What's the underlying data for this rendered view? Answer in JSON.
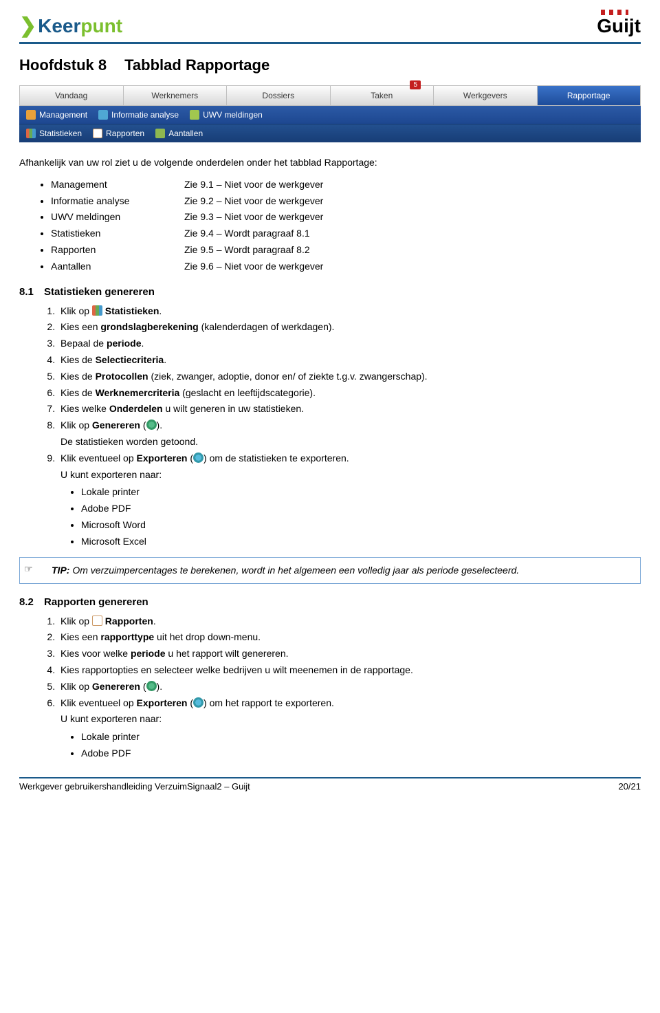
{
  "header": {
    "logo_left_part1": "Keer",
    "logo_left_part2": "punt",
    "logo_right": "Guijt"
  },
  "title": {
    "chapter": "Hoofdstuk 8",
    "name": "Tabblad Rapportage"
  },
  "tabs": [
    "Vandaag",
    "Werknemers",
    "Dossiers",
    "Taken",
    "Werkgevers",
    "Rapportage"
  ],
  "tabs_badge": "5",
  "subbar1": [
    "Management",
    "Informatie analyse",
    "UWV meldingen"
  ],
  "subbar2": [
    "Statistieken",
    "Rapporten",
    "Aantallen"
  ],
  "intro": "Afhankelijk van uw rol ziet u de volgende onderdelen onder het tabblad Rapportage:",
  "mapping": {
    "left": [
      "Management",
      "Informatie analyse",
      "UWV meldingen",
      "Statistieken",
      "Rapporten",
      "Aantallen"
    ],
    "right": [
      "Zie 9.1 – Niet voor de werkgever",
      "Zie 9.2 – Niet voor de werkgever",
      "Zie 9.3 – Niet voor de werkgever",
      "Zie 9.4 – Wordt paragraaf 8.1",
      "Zie 9.5 – Wordt paragraaf 8.2",
      "Zie 9.6 – Niet voor de werkgever"
    ]
  },
  "section81": {
    "num": "8.1",
    "title": "Statistieken genereren",
    "steps": {
      "s1a": "Klik op ",
      "s1b": " Statistieken",
      "s1c": ".",
      "s2a": "Kies een ",
      "s2b": "grondslagberekening",
      "s2c": " (kalenderdagen of werkdagen).",
      "s3a": "Bepaal de ",
      "s3b": "periode",
      "s3c": ".",
      "s4a": "Kies de ",
      "s4b": "Selectiecriteria",
      "s4c": ".",
      "s5a": "Kies de ",
      "s5b": "Protocollen",
      "s5c": " (ziek, zwanger, adoptie, donor en/ of ziekte t.g.v. zwangerschap).",
      "s6a": "Kies de ",
      "s6b": "Werknemercriteria",
      "s6c": " (geslacht en leeftijdscategorie).",
      "s7a": "Kies welke ",
      "s7b": "Onderdelen",
      "s7c": " u wilt generen in uw statistieken.",
      "s8a": "Klik op ",
      "s8b": "Genereren",
      "s8c": " (",
      "s8d": ").",
      "s8e": "De statistieken worden getoond.",
      "s9a": "Klik eventueel op ",
      "s9b": "Exporteren",
      "s9c": " (",
      "s9d": ") om de statistieken te exporteren.",
      "s9e": "U kunt exporteren naar:",
      "s9list": [
        "Lokale printer",
        "Adobe PDF",
        "Microsoft Word",
        "Microsoft Excel"
      ]
    }
  },
  "tip": {
    "label": "TIP:",
    "text": " Om verzuimpercentages te berekenen, wordt in het algemeen een volledig jaar als periode geselecteerd.",
    "hand": "☞"
  },
  "section82": {
    "num": "8.2",
    "title": "Rapporten genereren",
    "steps": {
      "s1a": "Klik op ",
      "s1b": " Rapporten",
      "s1c": ".",
      "s2a": "Kies een ",
      "s2b": "rapporttype",
      "s2c": " uit het drop down-menu.",
      "s3a": "Kies voor welke ",
      "s3b": "periode",
      "s3c": " u het rapport wilt genereren.",
      "s4": "Kies rapportopties en selecteer welke bedrijven u wilt meenemen in de rapportage.",
      "s5a": "Klik op ",
      "s5b": "Genereren",
      "s5c": " (",
      "s5d": ").",
      "s6a": "Klik eventueel op ",
      "s6b": "Exporteren",
      "s6c": " (",
      "s6d": ") om het rapport te exporteren.",
      "s6e": "U kunt exporteren naar:",
      "s6list": [
        "Lokale printer",
        "Adobe PDF"
      ]
    }
  },
  "footer": {
    "left": "Werkgever gebruikershandleiding VerzuimSignaal2 – Guijt",
    "right": "20/21"
  }
}
